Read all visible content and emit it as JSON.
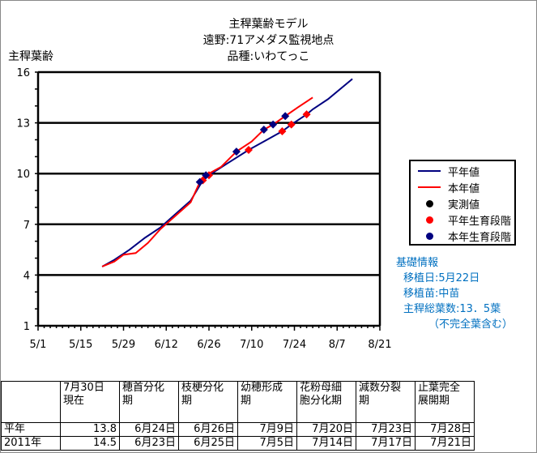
{
  "title": [
    "主稈葉齢モデル",
    "遠野:71アメダス監視地点",
    "品種:いわてっこ"
  ],
  "chart_data": {
    "type": "line",
    "ylabel": "主稈葉齢",
    "ylim": [
      1,
      16
    ],
    "yticks": [
      1,
      4,
      7,
      10,
      13,
      16
    ],
    "xlim_days_from_5_1": [
      0,
      112
    ],
    "xticks": [
      {
        "day": 0,
        "label": "5/1"
      },
      {
        "day": 14,
        "label": "5/15"
      },
      {
        "day": 28,
        "label": "5/29"
      },
      {
        "day": 42,
        "label": "6/12"
      },
      {
        "day": 56,
        "label": "6/26"
      },
      {
        "day": 70,
        "label": "7/10"
      },
      {
        "day": 84,
        "label": "7/24"
      },
      {
        "day": 98,
        "label": "8/7"
      },
      {
        "day": 112,
        "label": "8/21"
      }
    ],
    "grid": true,
    "series": [
      {
        "name": "平年値",
        "color": "#000080",
        "type": "line",
        "points": [
          [
            21,
            4.5
          ],
          [
            25,
            4.9
          ],
          [
            30,
            5.5
          ],
          [
            35,
            6.2
          ],
          [
            40,
            6.8
          ],
          [
            45,
            7.6
          ],
          [
            50,
            8.4
          ],
          [
            54,
            9.6
          ],
          [
            56,
            9.9
          ],
          [
            62,
            10.6
          ],
          [
            69,
            11.4
          ],
          [
            75,
            12.0
          ],
          [
            80,
            12.5
          ],
          [
            83,
            12.9
          ],
          [
            88,
            13.5
          ],
          [
            90,
            13.8
          ],
          [
            95,
            14.4
          ],
          [
            103,
            15.6
          ]
        ]
      },
      {
        "name": "本年値",
        "color": "#ff0000",
        "type": "line",
        "points": [
          [
            21,
            4.5
          ],
          [
            25,
            4.8
          ],
          [
            28,
            5.2
          ],
          [
            32,
            5.3
          ],
          [
            36,
            5.9
          ],
          [
            40,
            6.7
          ],
          [
            45,
            7.5
          ],
          [
            50,
            8.3
          ],
          [
            53,
            9.5
          ],
          [
            55,
            9.9
          ],
          [
            60,
            10.4
          ],
          [
            65,
            11.3
          ],
          [
            70,
            11.9
          ],
          [
            74,
            12.6
          ],
          [
            77,
            12.9
          ],
          [
            81,
            13.4
          ],
          [
            85,
            13.9
          ],
          [
            90,
            14.5
          ]
        ]
      },
      {
        "name": "実測値",
        "color": "#000000",
        "type": "marker",
        "points": []
      },
      {
        "name": "平年生育段階",
        "color": "#ff0000",
        "type": "marker",
        "points": [
          [
            54,
            9.6
          ],
          [
            56,
            9.9
          ],
          [
            69,
            11.4
          ],
          [
            80,
            12.5
          ],
          [
            83,
            12.9
          ],
          [
            88,
            13.5
          ]
        ]
      },
      {
        "name": "本年生育段階",
        "color": "#000080",
        "type": "marker",
        "points": [
          [
            53,
            9.5
          ],
          [
            55,
            9.9
          ],
          [
            65,
            11.3
          ],
          [
            74,
            12.6
          ],
          [
            77,
            12.9
          ],
          [
            81,
            13.4
          ]
        ]
      }
    ],
    "legend": "right"
  },
  "info": {
    "heading": "基礎情報",
    "lines": [
      "移植日:5月22日",
      "移植苗:中苗",
      "主稈総葉数:13．5葉",
      "（不完全葉含む）"
    ]
  },
  "table": {
    "headers": [
      "",
      "7月30日\n現在",
      "穂首分化\n期",
      "枝梗分化\n期",
      "幼穂形成\n期",
      "花粉母細\n胞分化期",
      "減数分裂\n期",
      "止葉完全\n展開期"
    ],
    "rows": [
      [
        "平年",
        "13.8",
        "6月24日",
        "6月26日",
        "7月9日",
        "7月20日",
        "7月23日",
        "7月28日"
      ],
      [
        "2011年",
        "14.5",
        "6月23日",
        "6月25日",
        "7月5日",
        "7月14日",
        "7月17日",
        "7月21日"
      ]
    ]
  }
}
